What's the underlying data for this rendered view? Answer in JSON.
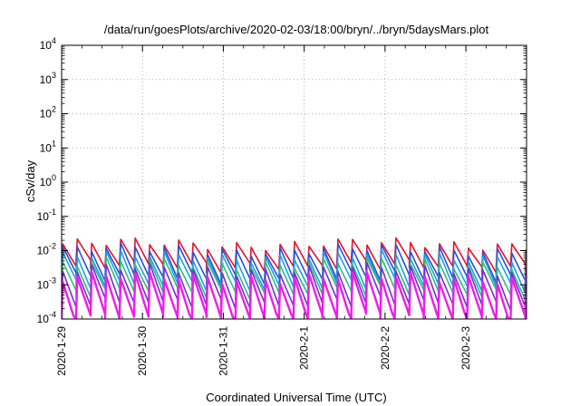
{
  "chart_data": {
    "type": "line",
    "title": "/data/run/goesPlots/archive/2020-02-03/18:00/bryn/../bryn/5daysMars.plot",
    "xlabel": "Coordinated Universal Time (UTC)",
    "ylabel": "cSv/day",
    "yscale": "log",
    "ylim": [
      0.0001,
      10000
    ],
    "xlim": [
      "2020-01-29",
      "2020-02-03 18:00"
    ],
    "grid": true,
    "legend": "none",
    "x_ticks": [
      "2020-1-29",
      "2020-1-30",
      "2020-1-31",
      "2020-2-1",
      "2020-2-2",
      "2020-2-3"
    ],
    "y_ticks": [
      {
        "base": "10",
        "exp": "-4"
      },
      {
        "base": "10",
        "exp": "-3"
      },
      {
        "base": "10",
        "exp": "-2"
      },
      {
        "base": "10",
        "exp": "-1"
      },
      {
        "base": "10",
        "exp": "0"
      },
      {
        "base": "10",
        "exp": "1"
      },
      {
        "base": "10",
        "exp": "2"
      },
      {
        "base": "10",
        "exp": "3"
      },
      {
        "base": "10",
        "exp": "4"
      }
    ],
    "sawtooth_period_hours": 4.3,
    "series": [
      {
        "color": "#e8102a",
        "peak": 0.0155,
        "trough": 0.0035
      },
      {
        "color": "#2a4fd8",
        "peak": 0.0105,
        "trough": 0.0016
      },
      {
        "color": "#1ea0e6",
        "peak": 0.0068,
        "trough": 0.00095
      },
      {
        "color": "#2fbf7a",
        "peak": 0.0042,
        "trough": 0.0006
      },
      {
        "color": "#7a2ad8",
        "peak": 0.0028,
        "trough": 0.00028
      },
      {
        "color": "#ee1ee8",
        "peak": 0.0016,
        "trough": 0.000105
      }
    ]
  }
}
